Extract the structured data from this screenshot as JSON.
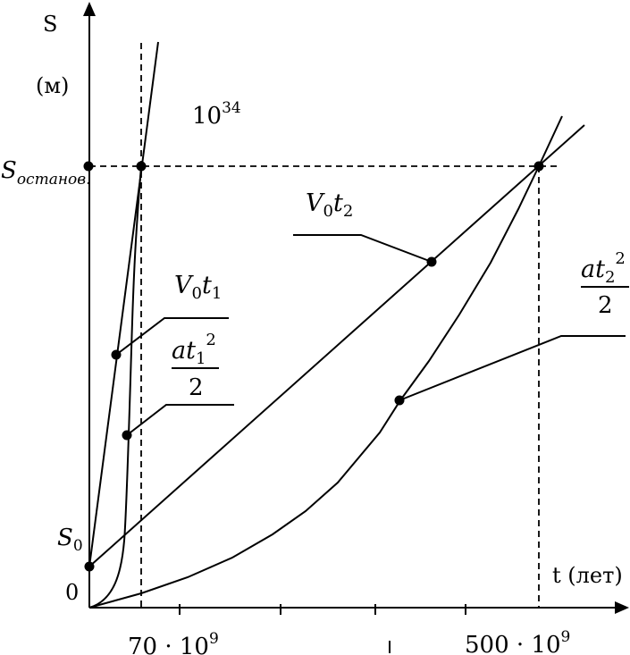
{
  "axes": {
    "y_label": "S",
    "y_unit": "(м)",
    "x_label": "t (лет)",
    "origin": "0",
    "s0_label": "S",
    "s0_sub": "0",
    "s_stop_label": "S",
    "s_stop_sub": "останов.",
    "tick_70": "70 · 10",
    "tick_70_exp": "9",
    "tick_500": "500 · 10",
    "tick_500_exp": "9"
  },
  "annotations": {
    "scale_base": "10",
    "scale_exp": "34",
    "v0t1": {
      "a": "V",
      "sub": "0",
      "b": "t",
      "sub2": "1"
    },
    "at1": {
      "num": "at",
      "sub": "1",
      "sup": "2",
      "den": "2"
    },
    "v0t2": {
      "a": "V",
      "sub": "0",
      "b": "t",
      "sub2": "2"
    },
    "at2": {
      "num": "at",
      "sub": "2",
      "sup": "2",
      "den": "2"
    }
  }
}
